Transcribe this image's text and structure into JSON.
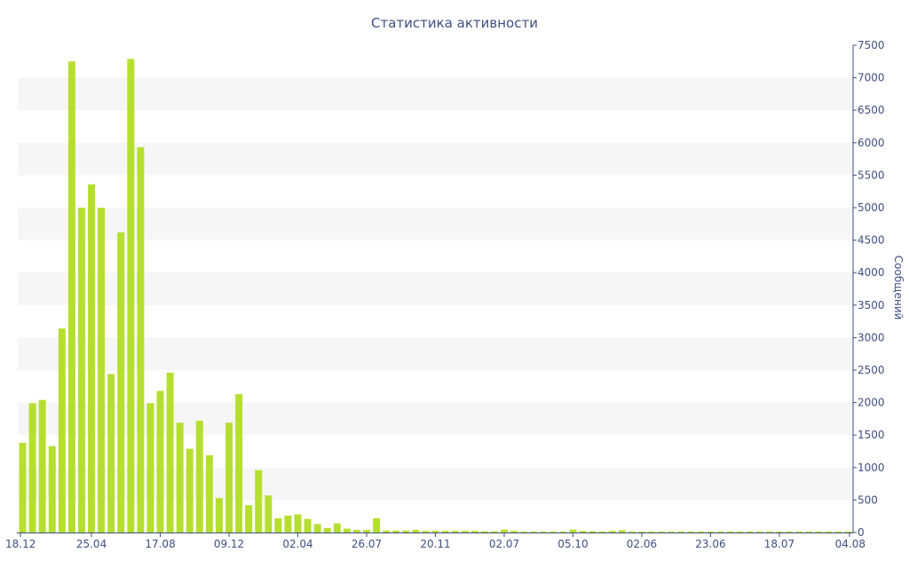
{
  "chart_data": {
    "type": "bar",
    "title": "Статистика активности",
    "xlabel": "",
    "ylabel": "Сообщений",
    "ylim": [
      0,
      7500
    ],
    "y_ticks": [
      0,
      500,
      1000,
      1500,
      2000,
      2500,
      3000,
      3500,
      4000,
      4500,
      5000,
      5500,
      6000,
      6500,
      7000,
      7500
    ],
    "y_axis_position": "right",
    "x_tick_labels": [
      {
        "label": "18.12",
        "index": 0
      },
      {
        "label": "25.04",
        "index": 7
      },
      {
        "label": "17.08",
        "index": 14
      },
      {
        "label": "09.12",
        "index": 21
      },
      {
        "label": "02.04",
        "index": 28
      },
      {
        "label": "26.07",
        "index": 35
      },
      {
        "label": "20.11",
        "index": 42
      },
      {
        "label": "02.07",
        "index": 49
      },
      {
        "label": "05.10",
        "index": 56
      },
      {
        "label": "02.06",
        "index": 63
      },
      {
        "label": "23.06",
        "index": 70
      },
      {
        "label": "18.07",
        "index": 77
      },
      {
        "label": "04.08",
        "index": 84
      }
    ],
    "values": [
      1380,
      1990,
      2040,
      1330,
      3140,
      7250,
      5000,
      5360,
      5000,
      2440,
      4620,
      7290,
      5930,
      1990,
      2180,
      2460,
      1690,
      1290,
      1720,
      1190,
      530,
      1690,
      2130,
      420,
      960,
      570,
      220,
      260,
      280,
      210,
      130,
      70,
      140,
      60,
      40,
      40,
      220,
      30,
      30,
      30,
      40,
      25,
      25,
      25,
      25,
      25,
      25,
      20,
      20,
      45,
      25,
      15,
      15,
      15,
      15,
      15,
      45,
      25,
      20,
      15,
      25,
      35,
      15,
      15,
      15,
      15,
      15,
      15,
      15,
      15,
      15,
      15,
      15,
      15,
      15,
      15,
      15,
      15,
      15,
      15,
      15,
      15,
      15,
      15,
      15
    ],
    "bar_color": "#b5df2f",
    "band_color": "#f6f6f6",
    "axis_color": "#3f4f83",
    "grid": "alternating-bands"
  }
}
